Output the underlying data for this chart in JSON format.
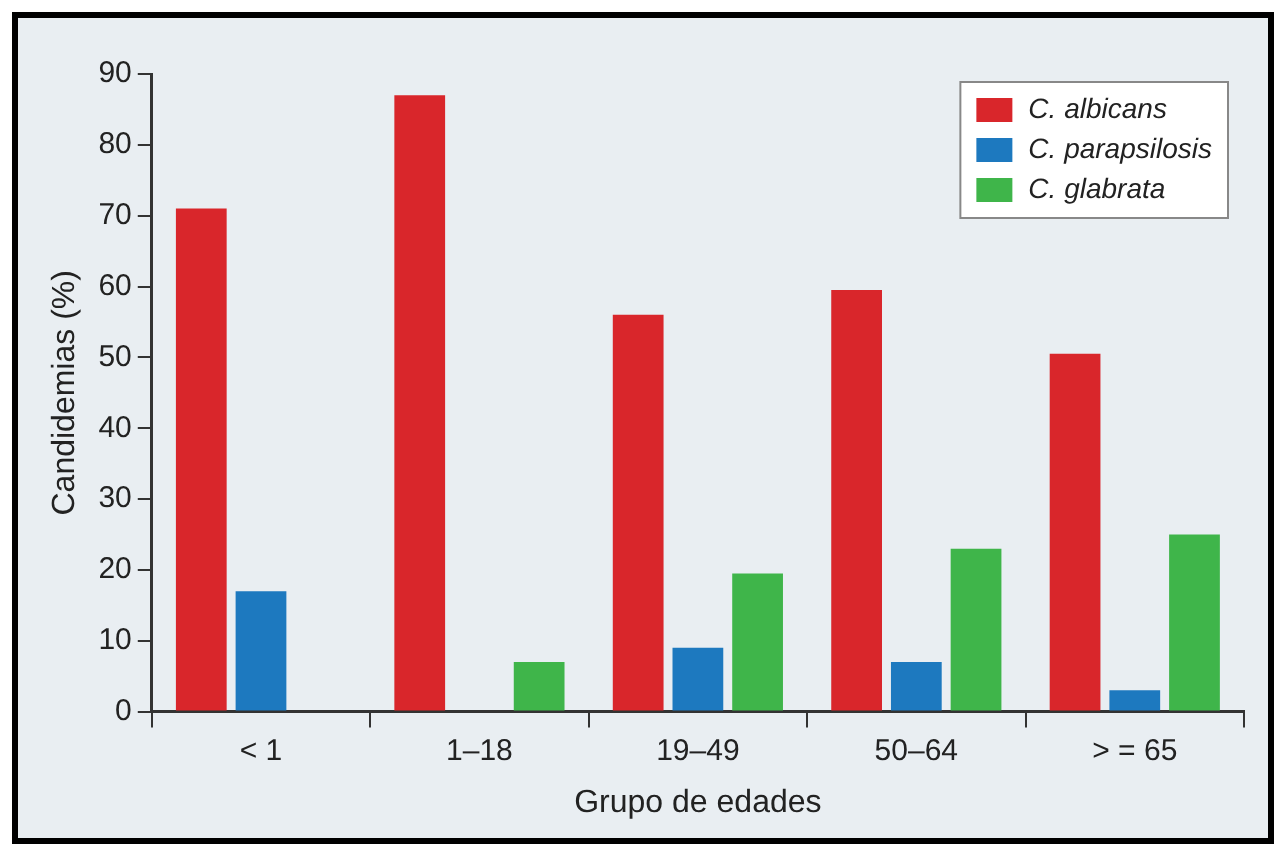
{
  "chart_data": {
    "type": "bar",
    "xlabel": "Grupo de edades",
    "ylabel": "Candidemias (%)",
    "categories": [
      "< 1",
      "1–18",
      "19–49",
      "50–64",
      "> = 65"
    ],
    "series": [
      {
        "name": "C. albicans",
        "color": "#d9262b",
        "values": [
          71,
          87,
          56,
          59.5,
          50.5
        ]
      },
      {
        "name": "C. parapsilosis",
        "color": "#1d79bf",
        "values": [
          17,
          null,
          9,
          7,
          3
        ]
      },
      {
        "name": "C. glabrata",
        "color": "#3fb54a",
        "values": [
          null,
          7,
          19.5,
          23,
          25
        ]
      }
    ],
    "ylim": [
      0,
      90
    ],
    "yticks": [
      0,
      10,
      20,
      30,
      40,
      50,
      60,
      70,
      80,
      90
    ],
    "grid": false,
    "legend": "top right"
  }
}
